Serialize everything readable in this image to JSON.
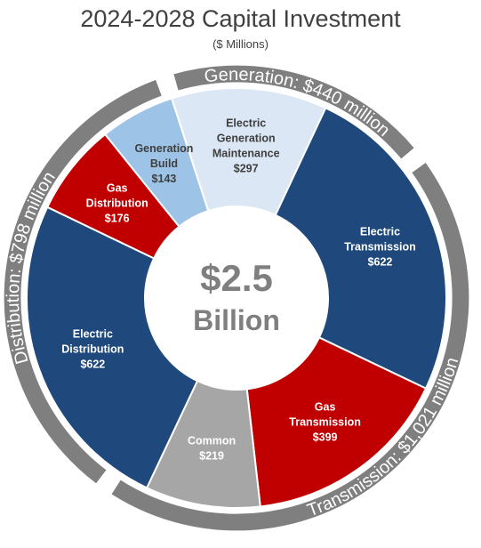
{
  "title": "2024-2028 Capital Investment",
  "subtitle": "($ Millions)",
  "center": {
    "line1": "$2.5",
    "line2": "Billion"
  },
  "chart_data": {
    "type": "pie",
    "title": "2024-2028 Capital Investment",
    "subtitle": "($ Millions)",
    "total_label": "$2.5 Billion",
    "slices": [
      {
        "label": [
          "Electric",
          "Generation",
          "Maintenance"
        ],
        "value_label": "$297",
        "value": 297,
        "color": "#dbe7f4",
        "text_color": "#3f3f3f"
      },
      {
        "label": [
          "Electric",
          "Transmission"
        ],
        "value_label": "$622",
        "value": 622,
        "color": "#1f497d",
        "text_color": "#ffffff"
      },
      {
        "label": [
          "Gas",
          "Transmission"
        ],
        "value_label": "$399",
        "value": 399,
        "color": "#c00000",
        "text_color": "#ffffff"
      },
      {
        "label": [
          "Common"
        ],
        "value_label": "$219",
        "value": 219,
        "color": "#a6a6a6",
        "text_color": "#ffffff"
      },
      {
        "label": [
          "Electric",
          "Distribution"
        ],
        "value_label": "$622",
        "value": 622,
        "color": "#1f497d",
        "text_color": "#ffffff"
      },
      {
        "label": [
          "Gas",
          "Distribution"
        ],
        "value_label": "$176",
        "value": 176,
        "color": "#c00000",
        "text_color": "#ffffff"
      },
      {
        "label": [
          "Generation",
          "Build"
        ],
        "value_label": "$143",
        "value": 143,
        "color": "#9dc3e6",
        "text_color": "#3f3f3f"
      }
    ],
    "groups": [
      {
        "label": "Generation: $440 million",
        "value": 440
      },
      {
        "label": "Transmission: $1,021 million",
        "value": 1021
      },
      {
        "label": "Distribution: $798 million",
        "value": 798
      }
    ],
    "colors": {
      "ring": "#7f7f7f",
      "ring_text": "#ffffff",
      "center_text": "#7f7f7f"
    }
  }
}
